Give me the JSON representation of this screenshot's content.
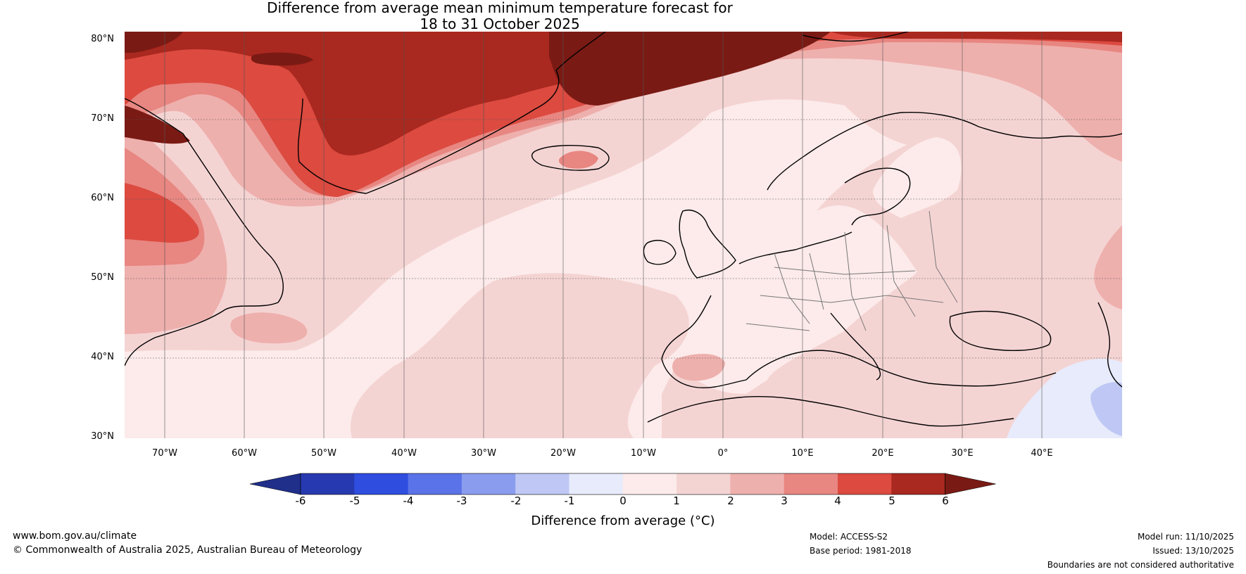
{
  "title": {
    "line1": "Difference from average mean minimum temperature forecast for",
    "line2": "18 to 31 October 2025"
  },
  "map": {
    "lat_labels": [
      "80°N",
      "70°N",
      "60°N",
      "50°N",
      "40°N",
      "30°N"
    ],
    "lon_labels": [
      "70°W",
      "60°W",
      "50°W",
      "40°W",
      "30°W",
      "20°W",
      "10°W",
      "0°",
      "10°E",
      "20°E",
      "30°E",
      "40°E"
    ],
    "lat_range": [
      30,
      80
    ],
    "lon_range": [
      -75,
      50
    ]
  },
  "colorbar": {
    "title": "Difference from average (°C)",
    "ticks": [
      "-6",
      "-5",
      "-4",
      "-3",
      "-2",
      "-1",
      "0",
      "1",
      "2",
      "3",
      "4",
      "5",
      "6"
    ],
    "colors": [
      "#1f2f8a",
      "#2739b0",
      "#2f4ee0",
      "#5b73e8",
      "#8a9cee",
      "#bfc8f4",
      "#e7ebfb",
      "#fcebea",
      "#f4d4d3",
      "#eeb0ad",
      "#e88681",
      "#dc4a40",
      "#a9281f",
      "#7a1a14"
    ]
  },
  "footer": {
    "website": "www.bom.gov.au/climate",
    "copyright": "© Commonwealth of Australia 2025, Australian Bureau of Meteorology",
    "model": "Model: ACCESS-S2",
    "base_period": "Base period: 1981-2018",
    "model_run": "Model run: 11/10/2025",
    "issued": "Issued: 13/10/2025",
    "boundaries": "Boundaries are not considered authoritative"
  }
}
